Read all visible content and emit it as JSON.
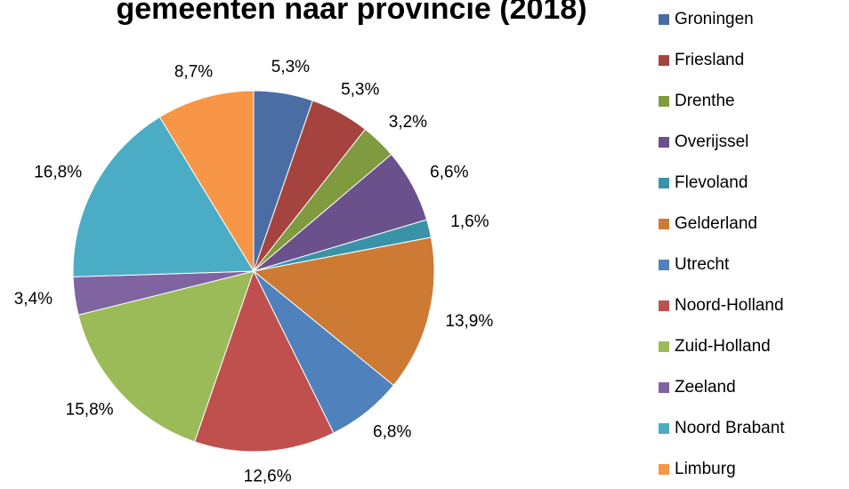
{
  "chart_data": {
    "type": "pie",
    "title": "gemeenten naar provincie (2018)",
    "categories": [
      "Groningen",
      "Friesland",
      "Drenthe",
      "Overijssel",
      "Flevoland",
      "Gelderland",
      "Utrecht",
      "Noord-Holland",
      "Zuid-Holland",
      "Zeeland",
      "Noord Brabant",
      "Limburg"
    ],
    "values": [
      5.3,
      5.3,
      3.2,
      6.6,
      1.6,
      13.9,
      6.8,
      12.6,
      15.8,
      3.4,
      16.8,
      8.7
    ],
    "value_labels": [
      "5,3%",
      "5,3%",
      "3,2%",
      "6,6%",
      "1,6%",
      "13,9%",
      "6,8%",
      "12,6%",
      "15,8%",
      "3,4%",
      "16,8%",
      "8,7%"
    ],
    "colors": [
      "#4a6ea4",
      "#a5433f",
      "#7f9a3f",
      "#6a518c",
      "#3a92a8",
      "#cd7a35",
      "#4f81bd",
      "#c0504d",
      "#9bbb59",
      "#8064a2",
      "#4bacc6",
      "#f79646"
    ],
    "legend": "right"
  }
}
